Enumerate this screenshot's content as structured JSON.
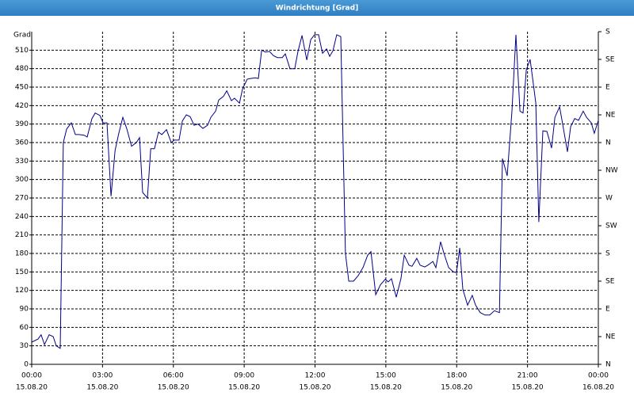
{
  "chart_data": {
    "type": "line",
    "title": "Windrichtung [Grad]",
    "y_label": "Grad",
    "x": [
      0,
      0.27,
      0.4,
      0.54,
      0.74,
      0.91,
      1.04,
      1.21,
      1.34,
      1.48,
      1.68,
      1.85,
      2.01,
      2.22,
      2.35,
      2.55,
      2.69,
      2.89,
      3.02,
      3.19,
      3.36,
      3.53,
      3.69,
      3.86,
      4.03,
      4.23,
      4.43,
      4.57,
      4.7,
      4.9,
      5.04,
      5.2,
      5.37,
      5.51,
      5.71,
      5.91,
      6.04,
      6.24,
      6.38,
      6.55,
      6.71,
      6.88,
      7.05,
      7.25,
      7.45,
      7.59,
      7.79,
      7.92,
      8.12,
      8.26,
      8.46,
      8.59,
      8.8,
      8.93,
      9.13,
      9.27,
      9.47,
      9.6,
      9.74,
      9.9,
      10.07,
      10.24,
      10.41,
      10.61,
      10.74,
      10.94,
      11.14,
      11.28,
      11.45,
      11.65,
      11.82,
      11.98,
      12.15,
      12.32,
      12.49,
      12.62,
      12.76,
      12.92,
      13.09,
      13.29,
      13.43,
      13.63,
      13.83,
      14.03,
      14.23,
      14.37,
      14.57,
      14.77,
      14.97,
      15.1,
      15.24,
      15.44,
      15.64,
      15.78,
      15.98,
      16.11,
      16.31,
      16.45,
      16.65,
      16.78,
      16.99,
      17.12,
      17.32,
      17.46,
      17.66,
      17.86,
      17.99,
      18.13,
      18.26,
      18.46,
      18.66,
      18.8,
      19.0,
      19.2,
      19.4,
      19.6,
      19.81,
      19.94,
      20.14,
      20.34,
      20.51,
      20.68,
      20.81,
      20.95,
      21.11,
      21.22,
      21.35,
      21.48,
      21.65,
      21.82,
      22.02,
      22.16,
      22.36,
      22.49,
      22.69,
      22.83,
      23.0,
      23.16,
      23.36,
      23.5,
      23.7,
      23.83,
      24
    ],
    "series": [
      {
        "color": "#00008b",
        "values": [
          36,
          41,
          48,
          32,
          48,
          45,
          30,
          26,
          360,
          382,
          392,
          373,
          373,
          372,
          369,
          399,
          408,
          404,
          392,
          392,
          273,
          347,
          375,
          401,
          382,
          354,
          360,
          368,
          279,
          270,
          350,
          350,
          377,
          373,
          381,
          360,
          364,
          364,
          395,
          405,
          402,
          388,
          390,
          383,
          388,
          401,
          411,
          429,
          435,
          444,
          428,
          432,
          424,
          447,
          463,
          464,
          465,
          464,
          510,
          507,
          508,
          501,
          498,
          498,
          504,
          480,
          480,
          508,
          534,
          494,
          527,
          535,
          535,
          505,
          512,
          500,
          509,
          535,
          532,
          180,
          135,
          135,
          144,
          157,
          177,
          183,
          113,
          129,
          138,
          134,
          139,
          109,
          139,
          177,
          161,
          159,
          172,
          161,
          158,
          161,
          167,
          157,
          199,
          180,
          157,
          150,
          149,
          189,
          122,
          96,
          112,
          96,
          84,
          80,
          80,
          87,
          84,
          334,
          306,
          411,
          535,
          411,
          408,
          478,
          495,
          463,
          424,
          231,
          379,
          378,
          351,
          401,
          418,
          390,
          345,
          386,
          399,
          396,
          411,
          401,
          392,
          375,
          396
        ]
      }
    ],
    "xlim": [
      0,
      24
    ],
    "xticks": [
      {
        "value": 0,
        "label": "00:00"
      },
      {
        "value": 3,
        "label": "03:00"
      },
      {
        "value": 6,
        "label": "06:00"
      },
      {
        "value": 9,
        "label": "09:00"
      },
      {
        "value": 12,
        "label": "12:00"
      },
      {
        "value": 15,
        "label": "15:00"
      },
      {
        "value": 18,
        "label": "18:00"
      },
      {
        "value": 21,
        "label": "21:00"
      },
      {
        "value": 24,
        "label": "00:00"
      }
    ],
    "xtick_dates": [
      "15.08.20",
      "15.08.20",
      "15.08.20",
      "15.08.20",
      "15.08.20",
      "15.08.20",
      "15.08.20",
      "15.08.20",
      "16.08.20"
    ],
    "ylim": [
      0,
      540
    ],
    "yticks": [
      0,
      30,
      60,
      90,
      120,
      150,
      180,
      210,
      240,
      270,
      300,
      330,
      360,
      390,
      420,
      450,
      480,
      510
    ],
    "y2lim": [
      0,
      540
    ],
    "y2ticks": [
      {
        "value": 0,
        "label": "N"
      },
      {
        "value": 45,
        "label": "NE"
      },
      {
        "value": 90,
        "label": "E"
      },
      {
        "value": 135,
        "label": "SE"
      },
      {
        "value": 180,
        "label": "S"
      },
      {
        "value": 225,
        "label": "SW"
      },
      {
        "value": 270,
        "label": "W"
      },
      {
        "value": 315,
        "label": "NW"
      },
      {
        "value": 360,
        "label": "N"
      },
      {
        "value": 405,
        "label": "NE"
      },
      {
        "value": 450,
        "label": "E"
      },
      {
        "value": 495,
        "label": "SE"
      },
      {
        "value": 540,
        "label": "S"
      }
    ],
    "grid": true
  }
}
